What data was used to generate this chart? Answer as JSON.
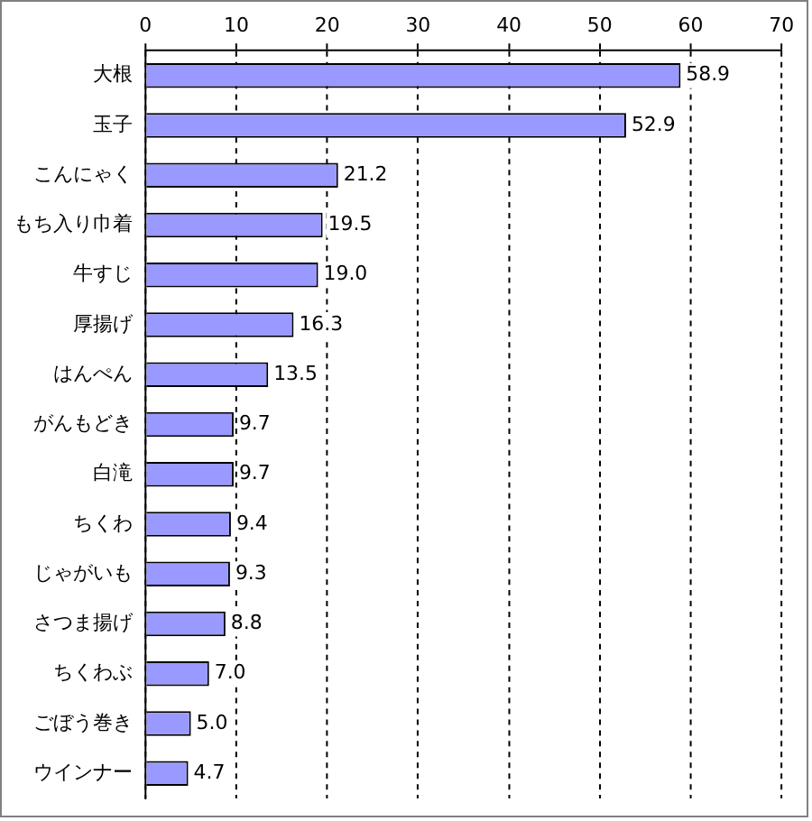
{
  "chart_data": {
    "type": "bar",
    "orientation": "horizontal",
    "categories": [
      "大根",
      "玉子",
      "こんにゃく",
      "もち入り巾着",
      "牛すじ",
      "厚揚げ",
      "はんぺん",
      "がんもどき",
      "白滝",
      "ちくわ",
      "じゃがいも",
      "さつま揚げ",
      "ちくわぶ",
      "ごぼう巻き",
      "ウインナー"
    ],
    "values": [
      58.9,
      52.9,
      21.2,
      19.5,
      19.0,
      16.3,
      13.5,
      9.7,
      9.7,
      9.4,
      9.3,
      8.8,
      7.0,
      5.0,
      4.7
    ],
    "value_labels": [
      "58.9",
      "52.9",
      "21.2",
      "19.5",
      "19.0",
      "16.3",
      "13.5",
      "9.7",
      "9.7",
      "9.4",
      "9.3",
      "8.8",
      "7.0",
      "5.0",
      "4.7"
    ],
    "color": "#9999ff",
    "xlim": [
      0,
      70
    ],
    "xticks": [
      0,
      10,
      20,
      30,
      40,
      50,
      60,
      70
    ],
    "grid": "x",
    "legend": false
  }
}
